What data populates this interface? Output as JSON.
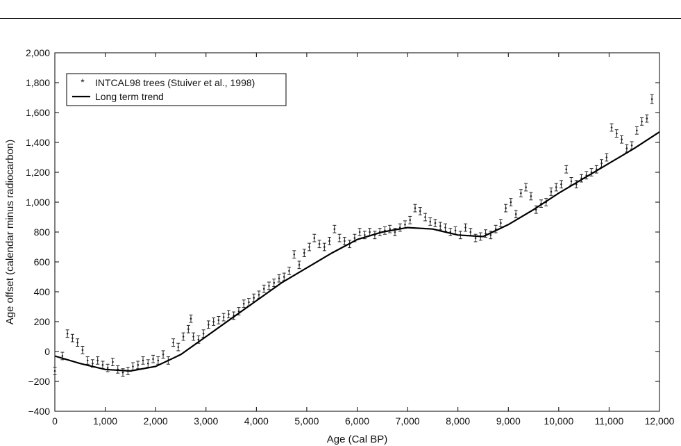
{
  "chart_data": {
    "type": "scatter",
    "xlabel": "Age (Cal BP)",
    "ylabel": "Age offset (calendar minus radiocarbon)",
    "xlim": [
      0,
      12000
    ],
    "ylim": [
      -400,
      2000
    ],
    "x_ticks": [
      0,
      1000,
      2000,
      3000,
      4000,
      5000,
      6000,
      7000,
      8000,
      9000,
      10000,
      11000,
      12000
    ],
    "x_tick_labels": [
      "0",
      "1,000",
      "2,000",
      "3,000",
      "4,000",
      "5,000",
      "6,000",
      "7,000",
      "8,000",
      "9,000",
      "10,000",
      "11,000",
      "12,000"
    ],
    "y_ticks": [
      -400,
      -200,
      0,
      200,
      400,
      600,
      800,
      1000,
      1200,
      1400,
      1600,
      1800,
      2000
    ],
    "y_tick_labels": [
      "−400",
      "−200",
      "0",
      "200",
      "400",
      "600",
      "800",
      "1,000",
      "1,200",
      "1,400",
      "1,600",
      "1,800",
      "2,000"
    ],
    "grid": false,
    "legend_position": "top-left",
    "series": [
      {
        "name": "INTCAL98 trees (Stuiver et al., 1998)",
        "style": "points-with-error-bars",
        "color": "#222222",
        "x": [
          0,
          150,
          250,
          350,
          450,
          550,
          650,
          750,
          850,
          950,
          1050,
          1150,
          1250,
          1350,
          1450,
          1550,
          1650,
          1750,
          1850,
          1950,
          2050,
          2150,
          2250,
          2350,
          2450,
          2550,
          2650,
          2700,
          2750,
          2850,
          2950,
          3050,
          3150,
          3250,
          3350,
          3450,
          3550,
          3650,
          3750,
          3850,
          3950,
          4050,
          4150,
          4250,
          4350,
          4450,
          4550,
          4650,
          4750,
          4850,
          4950,
          5050,
          5150,
          5250,
          5350,
          5450,
          5550,
          5650,
          5750,
          5850,
          5950,
          6050,
          6150,
          6250,
          6350,
          6450,
          6550,
          6650,
          6750,
          6850,
          6950,
          7050,
          7150,
          7250,
          7350,
          7450,
          7550,
          7650,
          7750,
          7850,
          7950,
          8050,
          8150,
          8250,
          8350,
          8450,
          8550,
          8650,
          8750,
          8850,
          8950,
          9050,
          9150,
          9250,
          9350,
          9450,
          9550,
          9650,
          9750,
          9850,
          9950,
          10050,
          10150,
          10250,
          10350,
          10450,
          10550,
          10650,
          10750,
          10850,
          10950,
          11050,
          11150,
          11250,
          11350,
          11450,
          11550,
          11650,
          11750,
          11850
        ],
        "y": [
          -130,
          -30,
          120,
          90,
          60,
          10,
          -60,
          -80,
          -60,
          -90,
          -110,
          -70,
          -120,
          -140,
          -130,
          -100,
          -90,
          -60,
          -80,
          -50,
          -60,
          -20,
          -60,
          60,
          30,
          100,
          150,
          220,
          100,
          80,
          120,
          180,
          200,
          210,
          230,
          250,
          240,
          270,
          320,
          330,
          360,
          380,
          420,
          440,
          460,
          490,
          500,
          540,
          650,
          580,
          660,
          700,
          760,
          720,
          700,
          740,
          820,
          760,
          740,
          720,
          760,
          800,
          780,
          800,
          780,
          800,
          810,
          820,
          800,
          830,
          850,
          880,
          960,
          940,
          900,
          870,
          860,
          840,
          830,
          800,
          810,
          780,
          830,
          800,
          760,
          770,
          790,
          780,
          820,
          860,
          960,
          1000,
          920,
          1060,
          1100,
          1040,
          950,
          990,
          1000,
          1070,
          1100,
          1120,
          1220,
          1140,
          1120,
          1160,
          1180,
          1200,
          1220,
          1260,
          1300,
          1500,
          1460,
          1420,
          1360,
          1380,
          1480,
          1540,
          1560,
          1690
        ],
        "error": [
          25,
          25,
          25,
          25,
          25,
          25,
          25,
          25,
          25,
          25,
          25,
          25,
          25,
          25,
          25,
          25,
          25,
          25,
          25,
          25,
          25,
          25,
          25,
          25,
          25,
          25,
          25,
          25,
          25,
          25,
          25,
          25,
          25,
          25,
          25,
          25,
          25,
          25,
          25,
          25,
          25,
          25,
          25,
          25,
          25,
          25,
          25,
          25,
          25,
          25,
          25,
          25,
          25,
          25,
          25,
          25,
          25,
          25,
          25,
          25,
          25,
          25,
          25,
          25,
          25,
          25,
          25,
          25,
          25,
          25,
          25,
          25,
          25,
          25,
          25,
          25,
          25,
          25,
          25,
          25,
          25,
          25,
          25,
          25,
          25,
          25,
          25,
          25,
          25,
          25,
          25,
          25,
          25,
          25,
          25,
          25,
          25,
          25,
          25,
          25,
          25,
          25,
          25,
          25,
          25,
          25,
          25,
          25,
          25,
          25,
          25,
          25,
          25,
          25,
          25,
          25,
          25,
          25,
          25,
          30
        ]
      },
      {
        "name": "Long term trend",
        "style": "line",
        "color": "#000000",
        "x": [
          0,
          500,
          1000,
          1500,
          2000,
          2500,
          3000,
          3500,
          4000,
          4500,
          5000,
          5500,
          6000,
          6500,
          7000,
          7500,
          8000,
          8500,
          9000,
          9500,
          10000,
          10500,
          11000,
          11500,
          12000
        ],
        "y": [
          -30,
          -80,
          -120,
          -130,
          -100,
          -20,
          100,
          220,
          340,
          460,
          560,
          660,
          750,
          800,
          830,
          820,
          780,
          770,
          850,
          950,
          1060,
          1160,
          1260,
          1360,
          1470
        ]
      }
    ]
  }
}
